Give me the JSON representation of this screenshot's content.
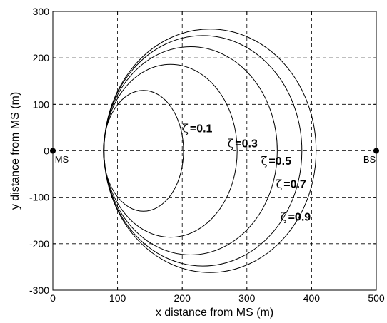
{
  "chart_data": {
    "type": "line",
    "title": "",
    "xlabel": "x distance from MS (m)",
    "ylabel": "y distance from MS (m)",
    "xlim": [
      0,
      500
    ],
    "ylim": [
      -300,
      300
    ],
    "xticks": [
      0,
      100,
      200,
      300,
      400,
      500
    ],
    "yticks": [
      -300,
      -200,
      -100,
      0,
      100,
      200,
      300
    ],
    "xtick_labels": [
      "0",
      "100",
      "200",
      "300",
      "400",
      "500"
    ],
    "ytick_labels": [
      "-300",
      "-200",
      "-100",
      "0",
      "100",
      "200",
      "300"
    ],
    "grid": true,
    "grid_style": "dashed",
    "line_color": "#000000",
    "series": [
      {
        "label_symbol": "ζ",
        "label_eq": "=",
        "label_value": "0.1",
        "center": [
          140,
          0
        ],
        "semi_axes": [
          62,
          130
        ],
        "label_at": [
          200,
          40
        ]
      },
      {
        "label_symbol": "ζ",
        "label_eq": "=",
        "label_value": "0.3",
        "center": [
          182,
          0
        ],
        "semi_axes": [
          103,
          186
        ],
        "label_at": [
          270,
          8
        ]
      },
      {
        "label_symbol": "ζ",
        "label_eq": "=",
        "label_value": "0.5",
        "center": [
          213,
          0
        ],
        "semi_axes": [
          134,
          224
        ],
        "label_at": [
          322,
          -30
        ]
      },
      {
        "label_symbol": "ζ",
        "label_eq": "=",
        "label_value": "0.7",
        "center": [
          232,
          0
        ],
        "semi_axes": [
          153,
          248
        ],
        "label_at": [
          345,
          -80
        ]
      },
      {
        "label_symbol": "ζ",
        "label_eq": "=",
        "label_value": "0.9",
        "center": [
          243,
          0
        ],
        "semi_axes": [
          164,
          262
        ],
        "label_at": [
          352,
          -150
        ]
      }
    ],
    "points": [
      {
        "label": "MS",
        "x": 0,
        "y": 0,
        "label_offset_data": [
          3,
          -25
        ]
      },
      {
        "label": "BS",
        "x": 500,
        "y": 0,
        "label_offset_data": [
          -20,
          -25
        ]
      }
    ]
  }
}
